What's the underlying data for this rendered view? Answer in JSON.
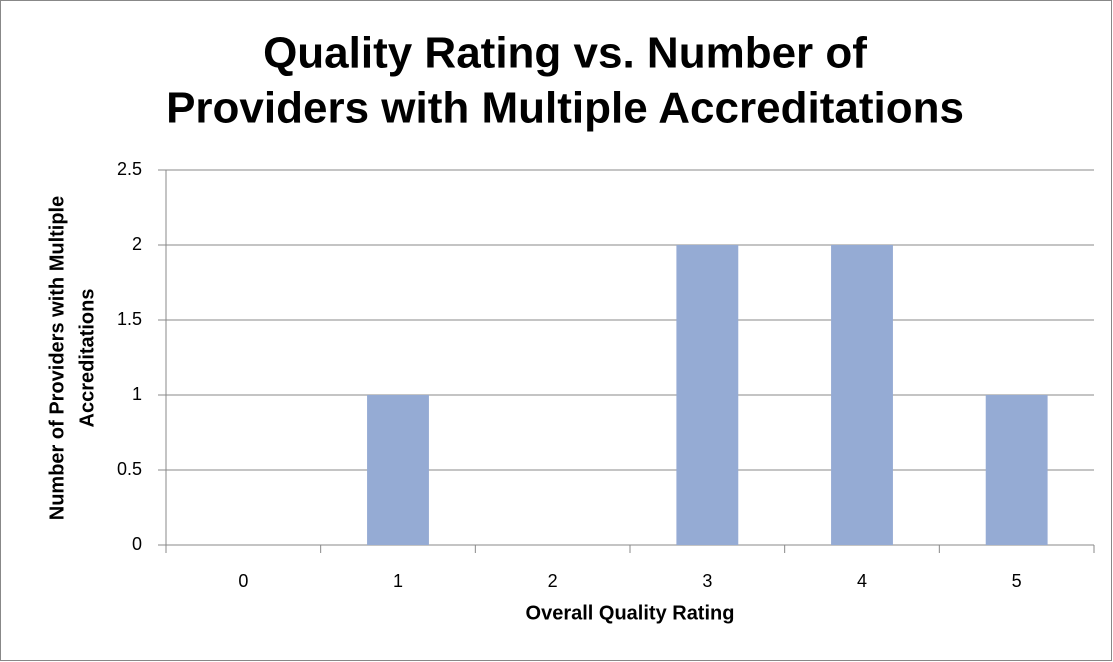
{
  "chart_data": {
    "type": "bar",
    "title": [
      "Quality Rating vs. Number of",
      "Providers with Multiple Accreditations"
    ],
    "x_label": "Overall Quality Rating",
    "y_label": [
      "Number of Providers with Multiple",
      "Accreditations"
    ],
    "categories": [
      "0",
      "1",
      "2",
      "3",
      "4",
      "5"
    ],
    "values": [
      0,
      1,
      0,
      2,
      2,
      1
    ],
    "color": "#95abd4",
    "ylim": [
      0,
      2.5
    ],
    "yticks": [
      0,
      0.5,
      1,
      1.5,
      2,
      2.5
    ],
    "grid": true
  }
}
